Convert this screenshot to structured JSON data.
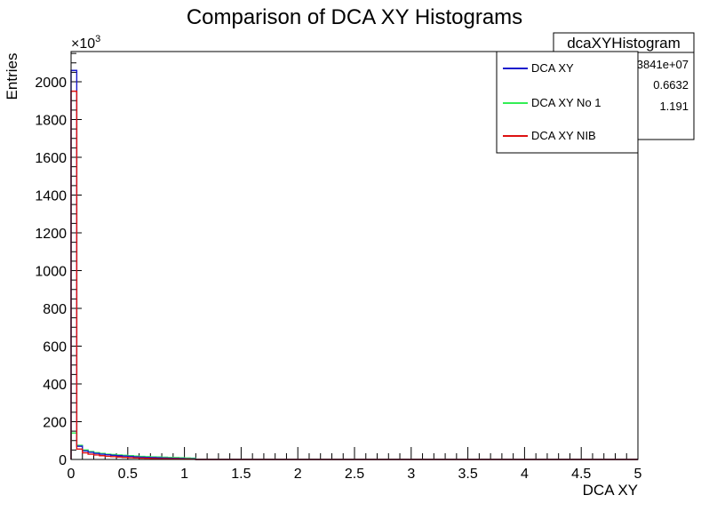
{
  "chart_data": {
    "type": "histogram",
    "title": "Comparison of DCA XY Histograms",
    "xlabel": "DCA XY",
    "ylabel": "Entries",
    "y_exponent_label": "×10",
    "y_exponent_power": "3",
    "xlim": [
      0,
      5
    ],
    "ylim": [
      0,
      2160
    ],
    "grid": false,
    "x_ticks": [
      {
        "v": 0,
        "label": "0"
      },
      {
        "v": 0.5,
        "label": "0.5"
      },
      {
        "v": 1,
        "label": "1"
      },
      {
        "v": 1.5,
        "label": "1.5"
      },
      {
        "v": 2,
        "label": "2"
      },
      {
        "v": 2.5,
        "label": "2.5"
      },
      {
        "v": 3,
        "label": "3"
      },
      {
        "v": 3.5,
        "label": "3.5"
      },
      {
        "v": 4,
        "label": "4"
      },
      {
        "v": 4.5,
        "label": "4.5"
      },
      {
        "v": 5,
        "label": "5"
      }
    ],
    "y_ticks": [
      {
        "v": 0,
        "label": "0"
      },
      {
        "v": 200,
        "label": "200"
      },
      {
        "v": 400,
        "label": "400"
      },
      {
        "v": 600,
        "label": "600"
      },
      {
        "v": 800,
        "label": "800"
      },
      {
        "v": 1000,
        "label": "1000"
      },
      {
        "v": 1200,
        "label": "1200"
      },
      {
        "v": 1400,
        "label": "1400"
      },
      {
        "v": 1600,
        "label": "1600"
      },
      {
        "v": 1800,
        "label": "1800"
      },
      {
        "v": 2000,
        "label": "2000"
      }
    ],
    "bin_width": 0.05,
    "series": [
      {
        "name": "DCA XY",
        "color": "#1a1acc",
        "values": [
          2060,
          70,
          45,
          38,
          32,
          28,
          25,
          22,
          20,
          18,
          16,
          14,
          12,
          11,
          10,
          9,
          8,
          7,
          6,
          5,
          4,
          3
        ]
      },
      {
        "name": "DCA XY No 1",
        "color": "#33ee55",
        "values": [
          140,
          75,
          50,
          42,
          36,
          32,
          28,
          26,
          24,
          22,
          20,
          18,
          16,
          15,
          14,
          13,
          12,
          11,
          10,
          9,
          8,
          7
        ]
      },
      {
        "name": "DCA XY NIB",
        "color": "#dd1111",
        "values": [
          1950,
          55,
          35,
          28,
          24,
          20,
          17,
          15,
          13,
          11,
          9,
          8,
          7,
          6,
          5,
          4,
          4,
          3,
          3,
          2,
          2,
          1
        ]
      }
    ],
    "legend_placement": "top-right"
  },
  "stats_box": {
    "title": "dcaXYHistogram",
    "rows": [
      "3841e+07",
      "0.6632",
      "1.191"
    ]
  }
}
